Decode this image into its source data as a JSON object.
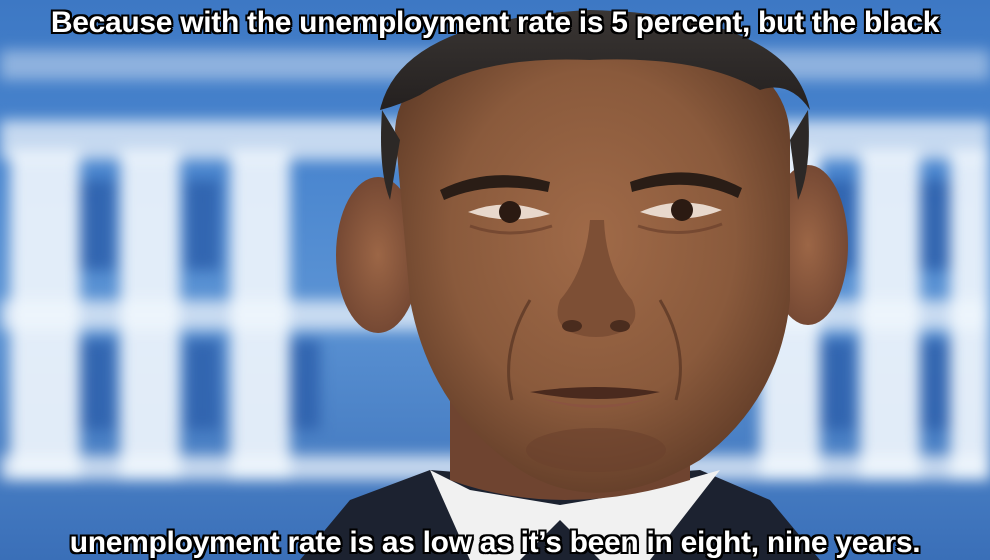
{
  "meme": {
    "top_text": "Because with the unemployment rate is 5 percent, but the black",
    "bottom_text": "unemployment rate is as low as it’s been in eight, nine years."
  },
  "colors": {
    "background_blue": "#3d78c4",
    "building_white": "#f2f7fd",
    "caption_text": "#ffffff",
    "caption_outline": "#000000",
    "skin": "#8a5a3c",
    "suit": "#1c2230",
    "shirt": "#f4f4f4"
  },
  "image": {
    "subject": "man-portrait-closeup",
    "background": "blurred-white-house"
  }
}
